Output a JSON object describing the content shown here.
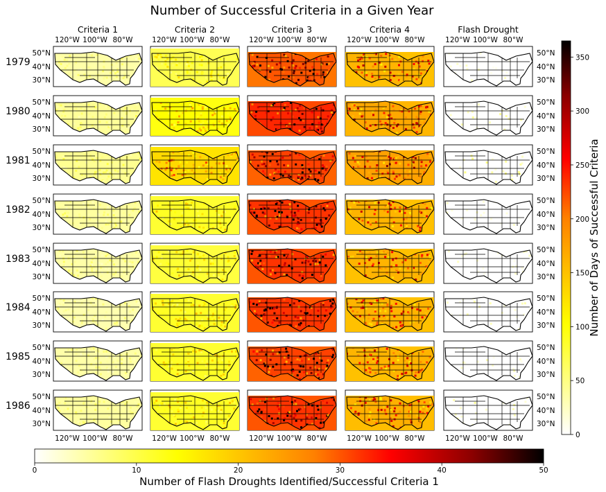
{
  "chart_data": {
    "type": "heatmap",
    "title": "Number of Successful Criteria in a Given Year",
    "columns": [
      "Criteria 1",
      "Criteria 2",
      "Criteria 3",
      "Criteria 4",
      "Flash Drought"
    ],
    "rows": [
      "1979",
      "1980",
      "1981",
      "1982",
      "1983",
      "1984",
      "1985",
      "1986"
    ],
    "lon_ticks": [
      "120°W",
      "100°W",
      "80°W"
    ],
    "lat_ticks": [
      "50°N",
      "40°N",
      "30°N"
    ],
    "panel_intensity_note_values": [
      [
        0.12,
        0.25,
        0.75,
        0.55,
        0.03
      ],
      [
        0.14,
        0.35,
        0.82,
        0.58,
        0.05
      ],
      [
        0.15,
        0.45,
        0.78,
        0.6,
        0.06
      ],
      [
        0.13,
        0.3,
        0.8,
        0.55,
        0.03
      ],
      [
        0.12,
        0.28,
        0.8,
        0.55,
        0.03
      ],
      [
        0.11,
        0.3,
        0.8,
        0.55,
        0.04
      ],
      [
        0.12,
        0.3,
        0.78,
        0.55,
        0.04
      ],
      [
        0.13,
        0.3,
        0.8,
        0.56,
        0.05
      ]
    ],
    "right_colorbar": {
      "label": "Number of Days of Successful Criteria",
      "range": [
        0,
        365
      ],
      "ticks": [
        "0",
        "50",
        "100",
        "150",
        "200",
        "250",
        "300",
        "350"
      ],
      "tick_values": [
        0,
        50,
        100,
        150,
        200,
        250,
        300,
        350
      ],
      "colormap": "hot_r"
    },
    "bottom_colorbar": {
      "label": "Number of Flash Droughts Identified/Successful Criteria 1",
      "range": [
        0,
        50
      ],
      "ticks": [
        "0",
        "10",
        "20",
        "30",
        "40",
        "50"
      ],
      "tick_values": [
        0,
        10,
        20,
        30,
        40,
        50
      ],
      "colormap": "hot_r"
    }
  },
  "colors": {
    "cmap_stops": [
      "#ffffff",
      "#ffff00",
      "#ff8000",
      "#ff0000",
      "#8b0000",
      "#000000"
    ]
  }
}
